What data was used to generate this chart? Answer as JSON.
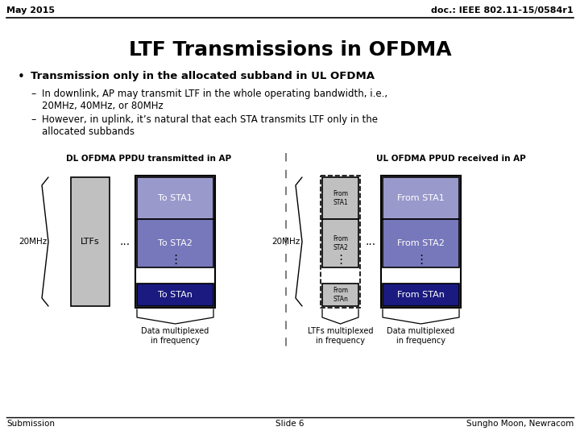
{
  "header_left": "May 2015",
  "header_right": "doc.: IEEE 802.11-15/0584r1",
  "title": "LTF Transmissions in OFDMA",
  "bullet_main": "Transmission only in the allocated subband in UL OFDMA",
  "sub_bullet1": "In downlink, AP may transmit LTF in the whole operating bandwidth, i.e.,\n20MHz, 40MHz, or 80MHz",
  "sub_bullet2": "However, in uplink, it’s natural that each STA transmits LTF only in the\nallocated subbands",
  "dl_label": "DL OFDMA PPDU transmitted in AP",
  "ul_label": "UL OFDMA PPUD received in AP",
  "color_ltf_gray": "#c0c0c0",
  "color_sta1": "#9999cc",
  "color_sta2": "#7777bb",
  "color_stan": "#1a1a80",
  "footer_left": "Submission",
  "footer_mid": "Slide 6",
  "footer_right": "Sungho Moon, Newracom",
  "bg_color": "#ffffff"
}
